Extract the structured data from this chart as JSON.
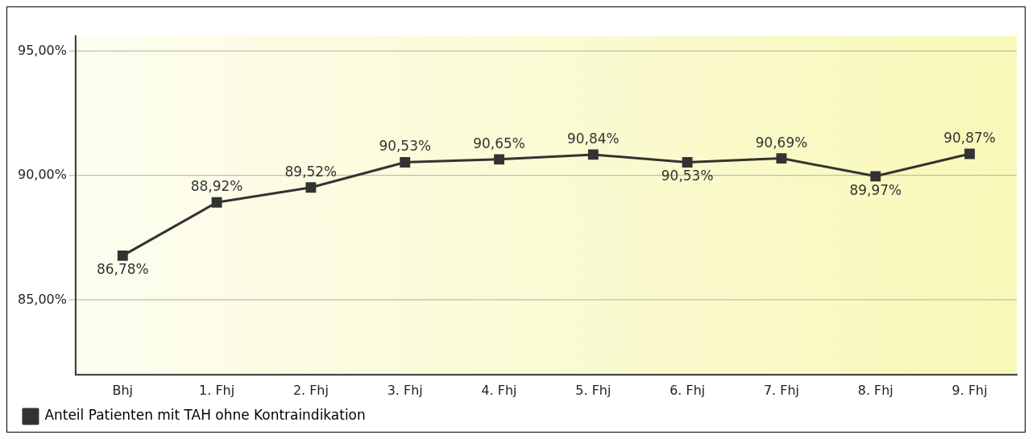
{
  "chart_data": {
    "type": "line",
    "categories": [
      "Bhj",
      "1. Fhj",
      "2. Fhj",
      "3. Fhj",
      "4. Fhj",
      "5. Fhj",
      "6. Fhj",
      "7. Fhj",
      "8. Fhj",
      "9. Fhj"
    ],
    "series": [
      {
        "name": "Anteil Patienten mit TAH ohne Kontraindikation",
        "color": "#333333",
        "values": [
          86.78,
          88.92,
          89.52,
          90.53,
          90.65,
          90.84,
          90.53,
          90.69,
          89.97,
          90.87
        ],
        "value_labels": [
          "86,78%",
          "88,92%",
          "89,52%",
          "90,53%",
          "90,65%",
          "90,84%",
          "90,53%",
          "90,69%",
          "89,97%",
          "90,87%"
        ]
      }
    ],
    "ylim": [
      82,
      95.6
    ],
    "yticks": [
      {
        "value": 85,
        "label": "85,00%"
      },
      {
        "value": 90,
        "label": "90,00%"
      },
      {
        "value": 95,
        "label": "95,00%"
      }
    ],
    "grid": "y",
    "legend": "bottom left",
    "marker": "square",
    "line_style": "solid"
  }
}
